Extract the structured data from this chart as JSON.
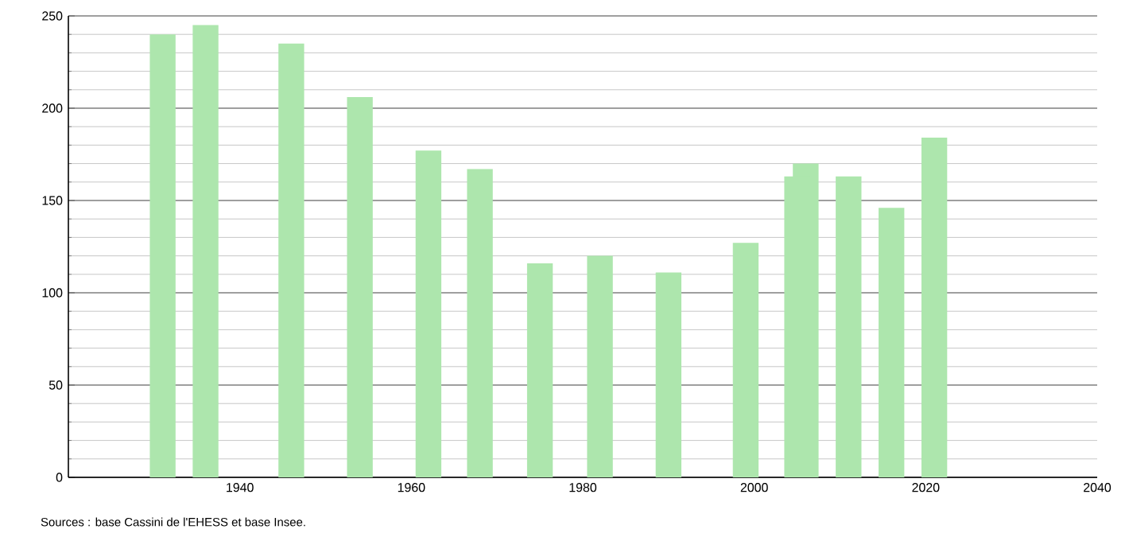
{
  "chart_data": {
    "type": "bar",
    "x": [
      1931,
      1936,
      1946,
      1954,
      1962,
      1968,
      1975,
      1982,
      1990,
      1999,
      2005,
      2006,
      2011,
      2016,
      2021
    ],
    "values": [
      240,
      245,
      235,
      206,
      177,
      167,
      116,
      120,
      111,
      127,
      163,
      170,
      163,
      146,
      184
    ],
    "color": "#ade6ad",
    "xlim": [
      1920,
      2040
    ],
    "xticks": [
      1940,
      1960,
      1980,
      2000,
      2020,
      2040
    ],
    "ylim": [
      0,
      250
    ],
    "yticks": [
      0,
      {
        "value": 10,
        "label": null
      },
      {
        "value": 20,
        "label": null
      },
      {
        "value": 30,
        "label": null
      },
      {
        "value": 40,
        "label": null
      },
      50,
      {
        "value": 60,
        "label": null
      },
      {
        "value": 70,
        "label": null
      },
      {
        "value": 80,
        "label": null
      },
      {
        "value": 90,
        "label": null
      },
      100,
      {
        "value": 110,
        "label": null
      },
      {
        "value": 120,
        "label": null
      },
      {
        "value": 130,
        "label": null
      },
      {
        "value": 140,
        "label": null
      },
      150,
      {
        "value": 160,
        "label": null
      },
      {
        "value": 170,
        "label": null
      },
      {
        "value": 180,
        "label": null
      },
      {
        "value": 190,
        "label": null
      },
      200,
      {
        "value": 210,
        "label": null
      },
      {
        "value": 220,
        "label": null
      },
      {
        "value": 230,
        "label": null
      },
      {
        "value": 240,
        "label": null
      },
      250
    ],
    "grid": "y",
    "annotations": [
      "Sources : base Cassini de l'EHESS et base Insee."
    ]
  }
}
